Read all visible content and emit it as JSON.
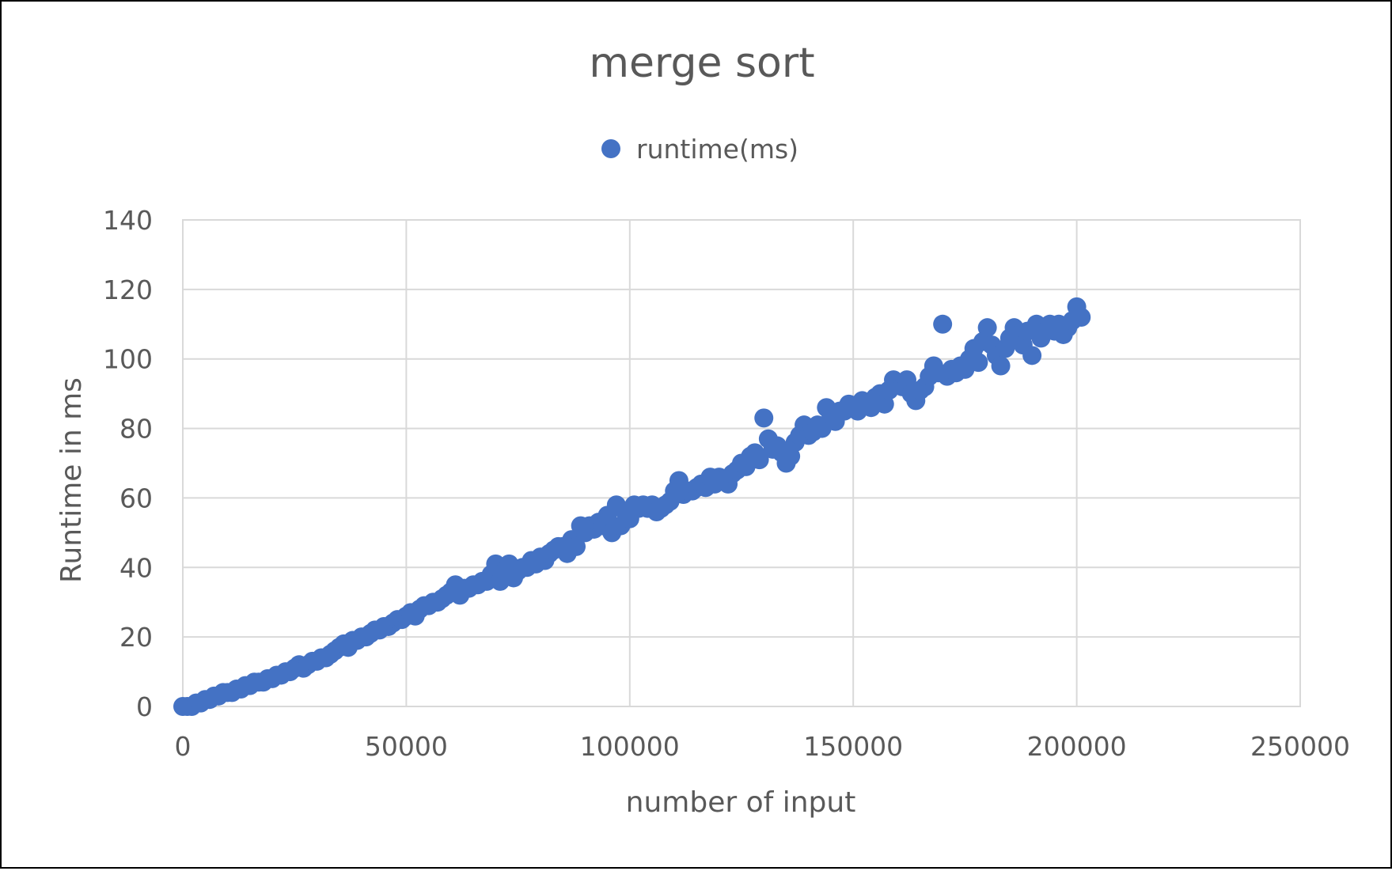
{
  "chart_data": {
    "type": "scatter",
    "title": "merge sort",
    "xlabel": "number of input",
    "ylabel": "Runtime in ms",
    "xlim": [
      0,
      250000
    ],
    "ylim": [
      0,
      140
    ],
    "x_ticks": [
      "0",
      "50000",
      "100000",
      "150000",
      "200000",
      "250000"
    ],
    "y_ticks": [
      "0",
      "20",
      "40",
      "60",
      "80",
      "100",
      "120",
      "140"
    ],
    "grid": true,
    "legend_position": "top",
    "series": [
      {
        "name": "runtime(ms)",
        "color": "#4472c4",
        "points": [
          [
            0,
            0
          ],
          [
            1000,
            0
          ],
          [
            2000,
            0
          ],
          [
            3000,
            1
          ],
          [
            4000,
            1
          ],
          [
            5000,
            2
          ],
          [
            6000,
            2
          ],
          [
            7000,
            3
          ],
          [
            8000,
            3
          ],
          [
            9000,
            4
          ],
          [
            10000,
            4
          ],
          [
            11000,
            4
          ],
          [
            12000,
            5
          ],
          [
            13000,
            5
          ],
          [
            14000,
            6
          ],
          [
            15000,
            6
          ],
          [
            16000,
            7
          ],
          [
            17000,
            7
          ],
          [
            18000,
            7
          ],
          [
            19000,
            8
          ],
          [
            20000,
            8
          ],
          [
            21000,
            9
          ],
          [
            22000,
            9
          ],
          [
            23000,
            10
          ],
          [
            24000,
            10
          ],
          [
            25000,
            11
          ],
          [
            26000,
            12
          ],
          [
            27000,
            11
          ],
          [
            28000,
            12
          ],
          [
            29000,
            13
          ],
          [
            30000,
            13
          ],
          [
            31000,
            14
          ],
          [
            32000,
            14
          ],
          [
            33000,
            15
          ],
          [
            34000,
            16
          ],
          [
            35000,
            17
          ],
          [
            36000,
            18
          ],
          [
            37000,
            17
          ],
          [
            38000,
            19
          ],
          [
            39000,
            19
          ],
          [
            40000,
            20
          ],
          [
            41000,
            20
          ],
          [
            42000,
            21
          ],
          [
            43000,
            22
          ],
          [
            44000,
            22
          ],
          [
            45000,
            23
          ],
          [
            46000,
            23
          ],
          [
            47000,
            24
          ],
          [
            48000,
            25
          ],
          [
            49000,
            25
          ],
          [
            50000,
            26
          ],
          [
            51000,
            27
          ],
          [
            52000,
            26
          ],
          [
            53000,
            28
          ],
          [
            54000,
            29
          ],
          [
            55000,
            29
          ],
          [
            56000,
            30
          ],
          [
            57000,
            30
          ],
          [
            58000,
            31
          ],
          [
            59000,
            32
          ],
          [
            60000,
            33
          ],
          [
            61000,
            35
          ],
          [
            62000,
            32
          ],
          [
            63000,
            34
          ],
          [
            64000,
            34
          ],
          [
            65000,
            35
          ],
          [
            66000,
            35
          ],
          [
            67000,
            36
          ],
          [
            68000,
            36
          ],
          [
            69000,
            38
          ],
          [
            70000,
            41
          ],
          [
            71000,
            36
          ],
          [
            72000,
            39
          ],
          [
            73000,
            41
          ],
          [
            74000,
            37
          ],
          [
            75000,
            39
          ],
          [
            76000,
            40
          ],
          [
            77000,
            40
          ],
          [
            78000,
            42
          ],
          [
            79000,
            41
          ],
          [
            80000,
            43
          ],
          [
            81000,
            42
          ],
          [
            82000,
            44
          ],
          [
            83000,
            45
          ],
          [
            84000,
            46
          ],
          [
            85000,
            46
          ],
          [
            86000,
            44
          ],
          [
            87000,
            48
          ],
          [
            88000,
            46
          ],
          [
            89000,
            52
          ],
          [
            90000,
            50
          ],
          [
            91000,
            52
          ],
          [
            92000,
            51
          ],
          [
            93000,
            53
          ],
          [
            94000,
            52
          ],
          [
            95000,
            55
          ],
          [
            96000,
            50
          ],
          [
            97000,
            58
          ],
          [
            98000,
            52
          ],
          [
            99000,
            56
          ],
          [
            100000,
            54
          ],
          [
            101000,
            58
          ],
          [
            102000,
            57
          ],
          [
            103000,
            58
          ],
          [
            104000,
            57
          ],
          [
            105000,
            58
          ],
          [
            106000,
            56
          ],
          [
            107000,
            57
          ],
          [
            108000,
            58
          ],
          [
            109000,
            59
          ],
          [
            110000,
            62
          ],
          [
            111000,
            65
          ],
          [
            112000,
            61
          ],
          [
            113000,
            62
          ],
          [
            114000,
            62
          ],
          [
            115000,
            63
          ],
          [
            116000,
            64
          ],
          [
            117000,
            63
          ],
          [
            118000,
            66
          ],
          [
            119000,
            64
          ],
          [
            120000,
            66
          ],
          [
            121000,
            65
          ],
          [
            122000,
            64
          ],
          [
            123000,
            67
          ],
          [
            124000,
            68
          ],
          [
            125000,
            70
          ],
          [
            126000,
            69
          ],
          [
            127000,
            72
          ],
          [
            128000,
            73
          ],
          [
            129000,
            71
          ],
          [
            130000,
            83
          ],
          [
            131000,
            77
          ],
          [
            132000,
            74
          ],
          [
            133000,
            75
          ],
          [
            134000,
            73
          ],
          [
            135000,
            70
          ],
          [
            136000,
            72
          ],
          [
            137000,
            76
          ],
          [
            138000,
            78
          ],
          [
            139000,
            81
          ],
          [
            140000,
            78
          ],
          [
            141000,
            79
          ],
          [
            142000,
            81
          ],
          [
            143000,
            80
          ],
          [
            144000,
            86
          ],
          [
            145000,
            84
          ],
          [
            146000,
            82
          ],
          [
            147000,
            85
          ],
          [
            148000,
            85
          ],
          [
            149000,
            87
          ],
          [
            150000,
            86
          ],
          [
            151000,
            85
          ],
          [
            152000,
            88
          ],
          [
            153000,
            87
          ],
          [
            154000,
            86
          ],
          [
            155000,
            89
          ],
          [
            156000,
            90
          ],
          [
            157000,
            87
          ],
          [
            158000,
            91
          ],
          [
            159000,
            94
          ],
          [
            160000,
            93
          ],
          [
            161000,
            92
          ],
          [
            162000,
            94
          ],
          [
            163000,
            90
          ],
          [
            164000,
            88
          ],
          [
            165000,
            91
          ],
          [
            166000,
            92
          ],
          [
            167000,
            95
          ],
          [
            168000,
            98
          ],
          [
            169000,
            96
          ],
          [
            170000,
            110
          ],
          [
            171000,
            95
          ],
          [
            172000,
            97
          ],
          [
            173000,
            96
          ],
          [
            174000,
            98
          ],
          [
            175000,
            97
          ],
          [
            176000,
            100
          ],
          [
            177000,
            103
          ],
          [
            178000,
            99
          ],
          [
            179000,
            105
          ],
          [
            180000,
            109
          ],
          [
            181000,
            104
          ],
          [
            182000,
            101
          ],
          [
            183000,
            98
          ],
          [
            184000,
            103
          ],
          [
            185000,
            106
          ],
          [
            186000,
            109
          ],
          [
            187000,
            107
          ],
          [
            188000,
            104
          ],
          [
            189000,
            108
          ],
          [
            190000,
            101
          ],
          [
            191000,
            110
          ],
          [
            192000,
            106
          ],
          [
            193000,
            108
          ],
          [
            194000,
            110
          ],
          [
            195000,
            108
          ],
          [
            196000,
            110
          ],
          [
            197000,
            107
          ],
          [
            198000,
            109
          ],
          [
            199000,
            111
          ],
          [
            200000,
            115
          ],
          [
            201000,
            112
          ]
        ]
      }
    ]
  }
}
